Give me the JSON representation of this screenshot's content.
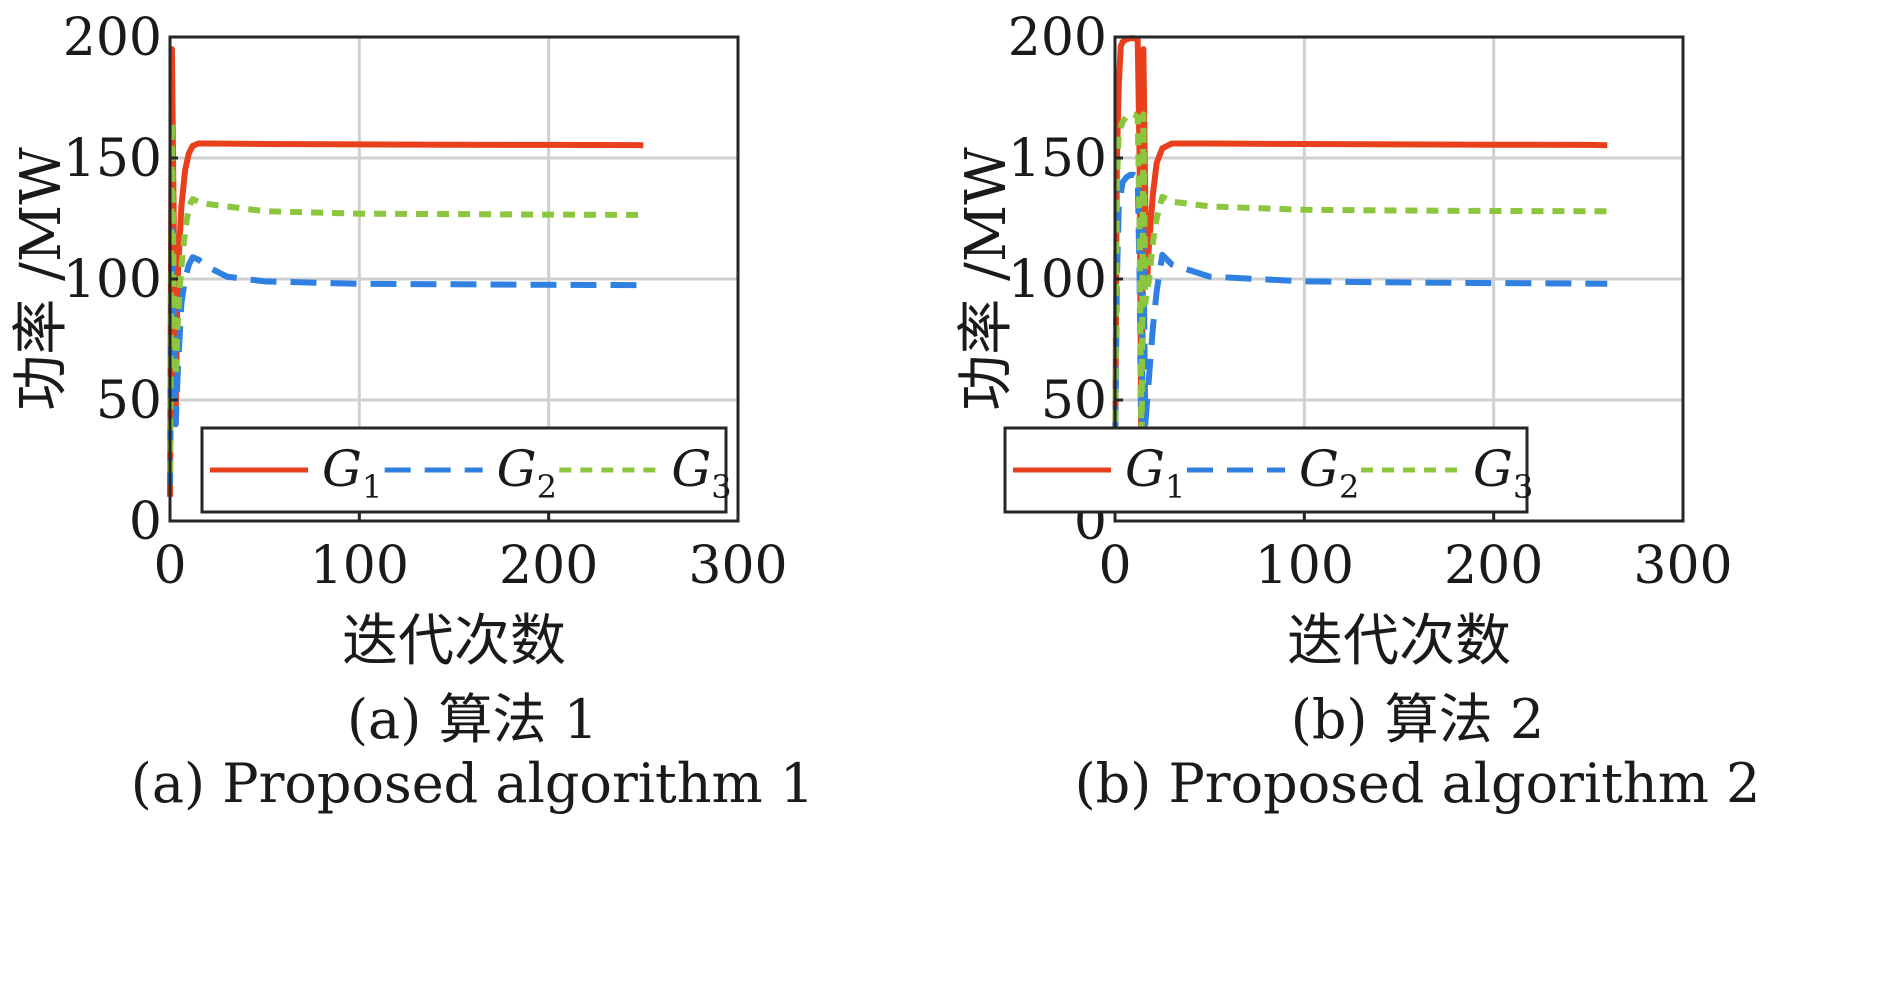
{
  "chart_data": [
    {
      "type": "line",
      "caption_cn": "(a) 算法 1",
      "caption_en": "(a) Proposed algorithm 1",
      "xlabel": "迭代次数",
      "ylabel": "功率 /MW",
      "xlim": [
        0,
        300
      ],
      "ylim": [
        0,
        200
      ],
      "xticks": [
        "0",
        "100",
        "200",
        "300"
      ],
      "yticks": [
        "0",
        "50",
        "100",
        "150",
        "200"
      ],
      "grid": true,
      "legend": {
        "placement": "bottom",
        "orientation": "horizontal"
      },
      "series": [
        {
          "name": "G",
          "sub": "1",
          "color": "#e8401c",
          "style": "solid",
          "x": [
            0,
            1,
            2,
            3,
            4,
            6,
            8,
            10,
            12,
            15,
            20,
            50,
            100,
            150,
            200,
            250
          ],
          "y": [
            10,
            195,
            120,
            40,
            100,
            130,
            145,
            152,
            155,
            156,
            156,
            155.8,
            155.6,
            155.5,
            155.4,
            155.3
          ]
        },
        {
          "name": "G",
          "sub": "2",
          "color": "#2f80e0",
          "style": "dashed",
          "x": [
            0,
            1,
            2,
            3,
            4,
            5,
            6,
            8,
            10,
            12,
            15,
            20,
            30,
            50,
            100,
            150,
            200,
            250
          ],
          "y": [
            15,
            120,
            80,
            40,
            60,
            75,
            90,
            100,
            106,
            109,
            108,
            105,
            101,
            99,
            98,
            97.8,
            97.6,
            97.5
          ]
        },
        {
          "name": "G",
          "sub": "3",
          "color": "#8cc63f",
          "style": "dotted",
          "x": [
            0,
            1,
            2,
            3,
            4,
            5,
            6,
            8,
            10,
            12,
            15,
            20,
            30,
            50,
            100,
            150,
            200,
            250
          ],
          "y": [
            20,
            165,
            90,
            60,
            80,
            95,
            105,
            120,
            130,
            133,
            132,
            131,
            130,
            128,
            127,
            126.8,
            126.6,
            126.5
          ]
        }
      ]
    },
    {
      "type": "line",
      "caption_cn": "(b) 算法 2",
      "caption_en": "(b) Proposed algorithm 2",
      "xlabel": "迭代次数",
      "ylabel": "功率 /MW",
      "xlim": [
        0,
        300
      ],
      "ylim": [
        0,
        200
      ],
      "xticks": [
        "0",
        "100",
        "200",
        "300"
      ],
      "yticks": [
        "0",
        "50",
        "100",
        "150",
        "200"
      ],
      "grid": true,
      "legend": {
        "placement": "bottom",
        "orientation": "horizontal"
      },
      "series": [
        {
          "name": "G",
          "sub": "1",
          "color": "#e8401c",
          "style": "solid",
          "x": [
            0,
            1,
            2,
            3,
            4,
            6,
            8,
            10,
            12,
            13,
            14,
            15,
            16,
            17,
            18,
            20,
            22,
            25,
            30,
            50,
            100,
            150,
            200,
            250,
            260
          ],
          "y": [
            10,
            150,
            180,
            196,
            198,
            199,
            199.5,
            199.5,
            199,
            150,
            10,
            195,
            130,
            100,
            115,
            135,
            148,
            154,
            156,
            156,
            155.8,
            155.6,
            155.5,
            155.4,
            155.3
          ]
        },
        {
          "name": "G",
          "sub": "2",
          "color": "#2f80e0",
          "style": "dashed",
          "x": [
            0,
            1,
            2,
            4,
            6,
            8,
            10,
            12,
            13,
            14,
            15,
            16,
            18,
            20,
            22,
            25,
            30,
            50,
            100,
            150,
            200,
            250,
            260
          ],
          "y": [
            20,
            100,
            130,
            140,
            142,
            143,
            143,
            142,
            100,
            20,
            120,
            40,
            60,
            80,
            95,
            110,
            106,
            101,
            99,
            98.6,
            98.3,
            98.1,
            98
          ]
        },
        {
          "name": "G",
          "sub": "3",
          "color": "#8cc63f",
          "style": "dotted",
          "x": [
            0,
            1,
            2,
            4,
            6,
            8,
            10,
            12,
            13,
            14,
            15,
            16,
            18,
            20,
            22,
            25,
            30,
            50,
            100,
            150,
            200,
            250,
            260
          ],
          "y": [
            15,
            140,
            160,
            165,
            167,
            168,
            168,
            167,
            120,
            20,
            168,
            90,
            100,
            115,
            125,
            134,
            132,
            130,
            128.6,
            128.3,
            128.1,
            128,
            128
          ]
        }
      ]
    }
  ]
}
